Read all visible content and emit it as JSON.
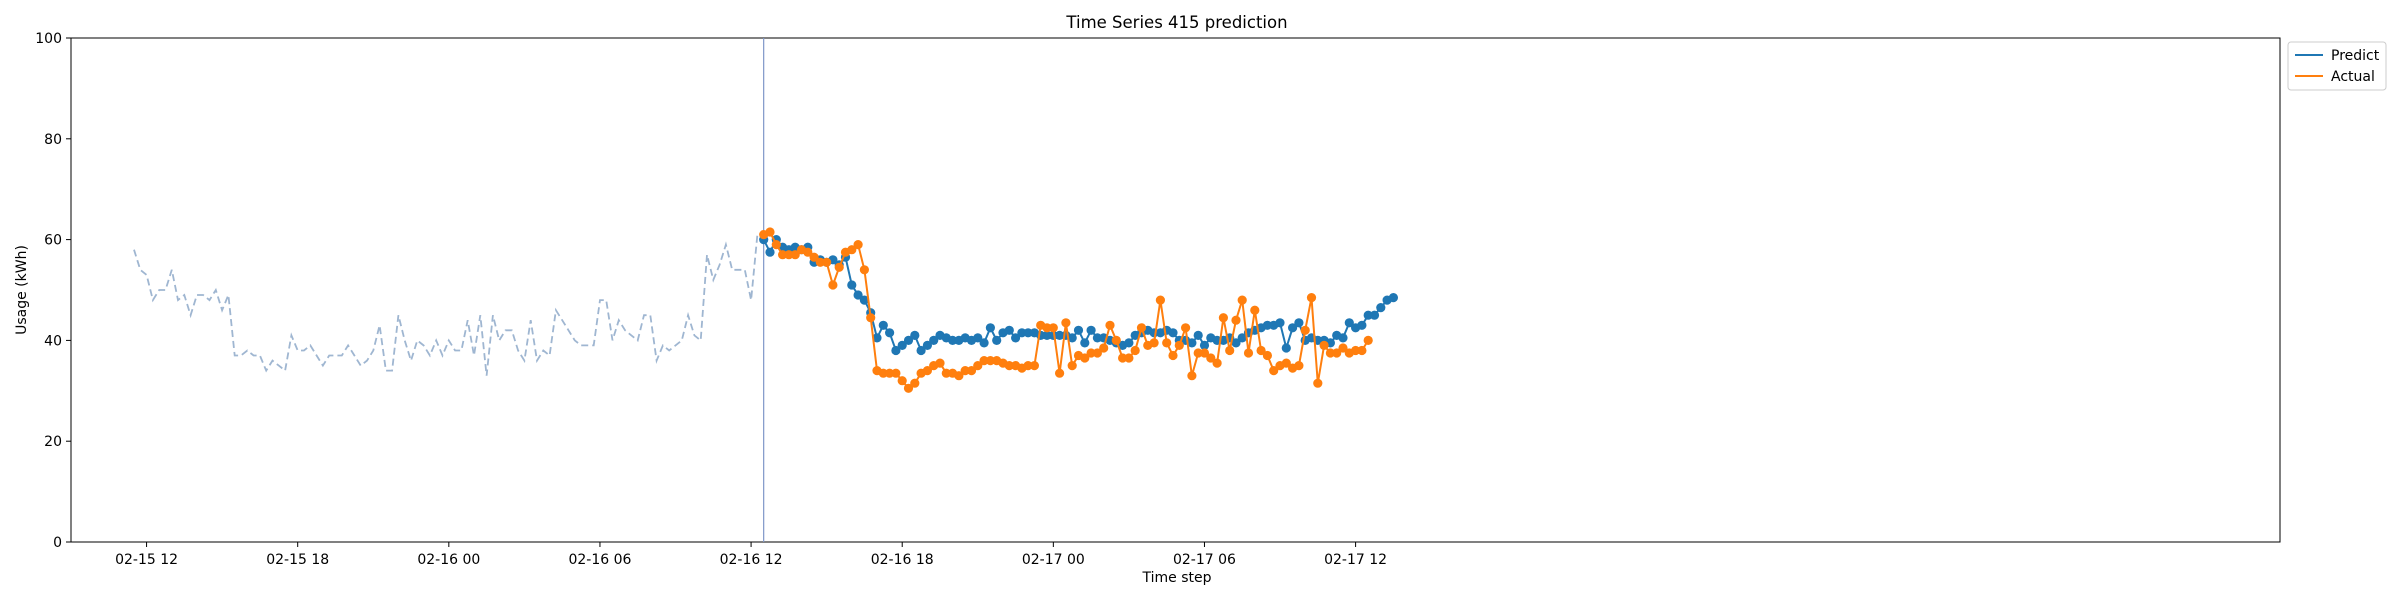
{
  "chart_data": {
    "type": "line",
    "title": "Time Series 415 prediction",
    "xlabel": "Time step",
    "ylabel": "Usage (kWh)",
    "ylim": [
      0,
      100
    ],
    "yticks": [
      0,
      20,
      40,
      60,
      80,
      100
    ],
    "xlim_hours": [
      -3.0,
      84.7
    ],
    "xticks": [
      {
        "h": 0,
        "label": "02-15 12"
      },
      {
        "h": 6,
        "label": "02-15 18"
      },
      {
        "h": 12,
        "label": "02-16 00"
      },
      {
        "h": 18,
        "label": "02-16 06"
      },
      {
        "h": 24,
        "label": "02-16 12"
      },
      {
        "h": 30,
        "label": "02-16 18"
      },
      {
        "h": 36,
        "label": "02-17 00"
      },
      {
        "h": 42,
        "label": "02-17 06"
      },
      {
        "h": 48,
        "label": "02-17 12"
      }
    ],
    "time_step_hours": 0.25,
    "history": {
      "start_hour": -0.5,
      "step_hours": 0.25,
      "color": "#9fb6d1",
      "values": [
        58,
        54,
        53,
        48,
        50,
        50,
        54,
        48,
        49,
        45,
        49,
        49,
        48,
        50,
        46,
        49,
        37,
        37,
        38,
        37,
        37,
        34,
        36,
        35,
        34,
        41,
        38,
        38,
        39,
        37,
        35,
        37,
        37,
        37,
        39,
        37,
        35,
        36,
        38,
        43,
        34,
        34,
        45,
        40,
        36,
        40,
        39,
        37,
        40,
        37,
        40,
        38,
        38,
        44,
        37,
        45,
        33,
        45,
        40,
        42,
        42,
        38,
        36,
        44,
        36,
        38,
        37,
        46,
        44,
        42,
        40,
        39,
        39,
        39,
        48,
        48,
        40,
        44,
        42,
        41,
        40,
        45,
        45,
        36,
        39,
        38,
        39,
        40,
        45,
        41,
        40,
        57,
        52,
        55,
        59,
        54,
        54,
        54,
        48,
        61
      ]
    },
    "forecast_start_hour": 24.5,
    "divider_hour": 24.5,
    "series": [
      {
        "name": "Predict",
        "color": "#1f77b4",
        "values": [
          60,
          57.5,
          60,
          58.5,
          58,
          58.5,
          58,
          58.5,
          55.5,
          56,
          55.5,
          56,
          55,
          56.5,
          51,
          49,
          48,
          45.5,
          40.5,
          43,
          41.5,
          38,
          39,
          40,
          41,
          38,
          39,
          40,
          41,
          40.5,
          40,
          40,
          40.5,
          40,
          40.5,
          39.5,
          42.5,
          40,
          41.5,
          42,
          40.5,
          41.5,
          41.5,
          41.5,
          41,
          41,
          41,
          41,
          41,
          40.5,
          42,
          39.5,
          42,
          40.5,
          40.5,
          40,
          39.5,
          39,
          39.5,
          41,
          41.5,
          42,
          41.5,
          41.5,
          42,
          41.5,
          40,
          40,
          39.5,
          41,
          39,
          40.5,
          40,
          40,
          40.5,
          39.5,
          40.5,
          41.5,
          42,
          42.5,
          43,
          43,
          43.5,
          38.5,
          42.5,
          43.5,
          40,
          40.5,
          40,
          40,
          39.5,
          41,
          40.5,
          43.5,
          42.5,
          43,
          45,
          45,
          46.5,
          48,
          48.5
        ]
      },
      {
        "name": "Actual",
        "color": "#ff7f0e",
        "values": [
          61,
          61.5,
          59,
          57,
          57,
          57,
          58,
          57.5,
          56.5,
          55.5,
          55.5,
          51,
          54.5,
          57.5,
          58,
          59,
          54,
          44.5,
          34,
          33.5,
          33.5,
          33.5,
          32,
          30.5,
          31.5,
          33.5,
          34,
          35,
          35.5,
          33.5,
          33.5,
          33,
          34,
          34,
          35,
          36,
          36,
          36,
          35.5,
          35,
          35,
          34.5,
          35,
          35,
          43,
          42.5,
          42.5,
          33.5,
          43.5,
          35,
          37,
          36.5,
          37.5,
          37.5,
          38.5,
          43,
          40,
          36.5,
          36.5,
          38,
          42.5,
          39,
          39.5,
          48,
          39.5,
          37,
          39,
          42.5,
          33,
          37.5,
          37.5,
          36.5,
          35.5,
          44.5,
          38,
          44,
          48,
          37.5,
          46,
          38,
          37,
          34,
          35,
          35.5,
          34.5,
          35,
          42,
          48.5,
          31.5,
          39,
          37.5,
          37.5,
          38.5,
          37.5,
          38,
          38,
          40
        ]
      }
    ],
    "legend": {
      "placement": "outside-top-right",
      "entries": [
        "Predict",
        "Actual"
      ]
    },
    "grid": false
  }
}
